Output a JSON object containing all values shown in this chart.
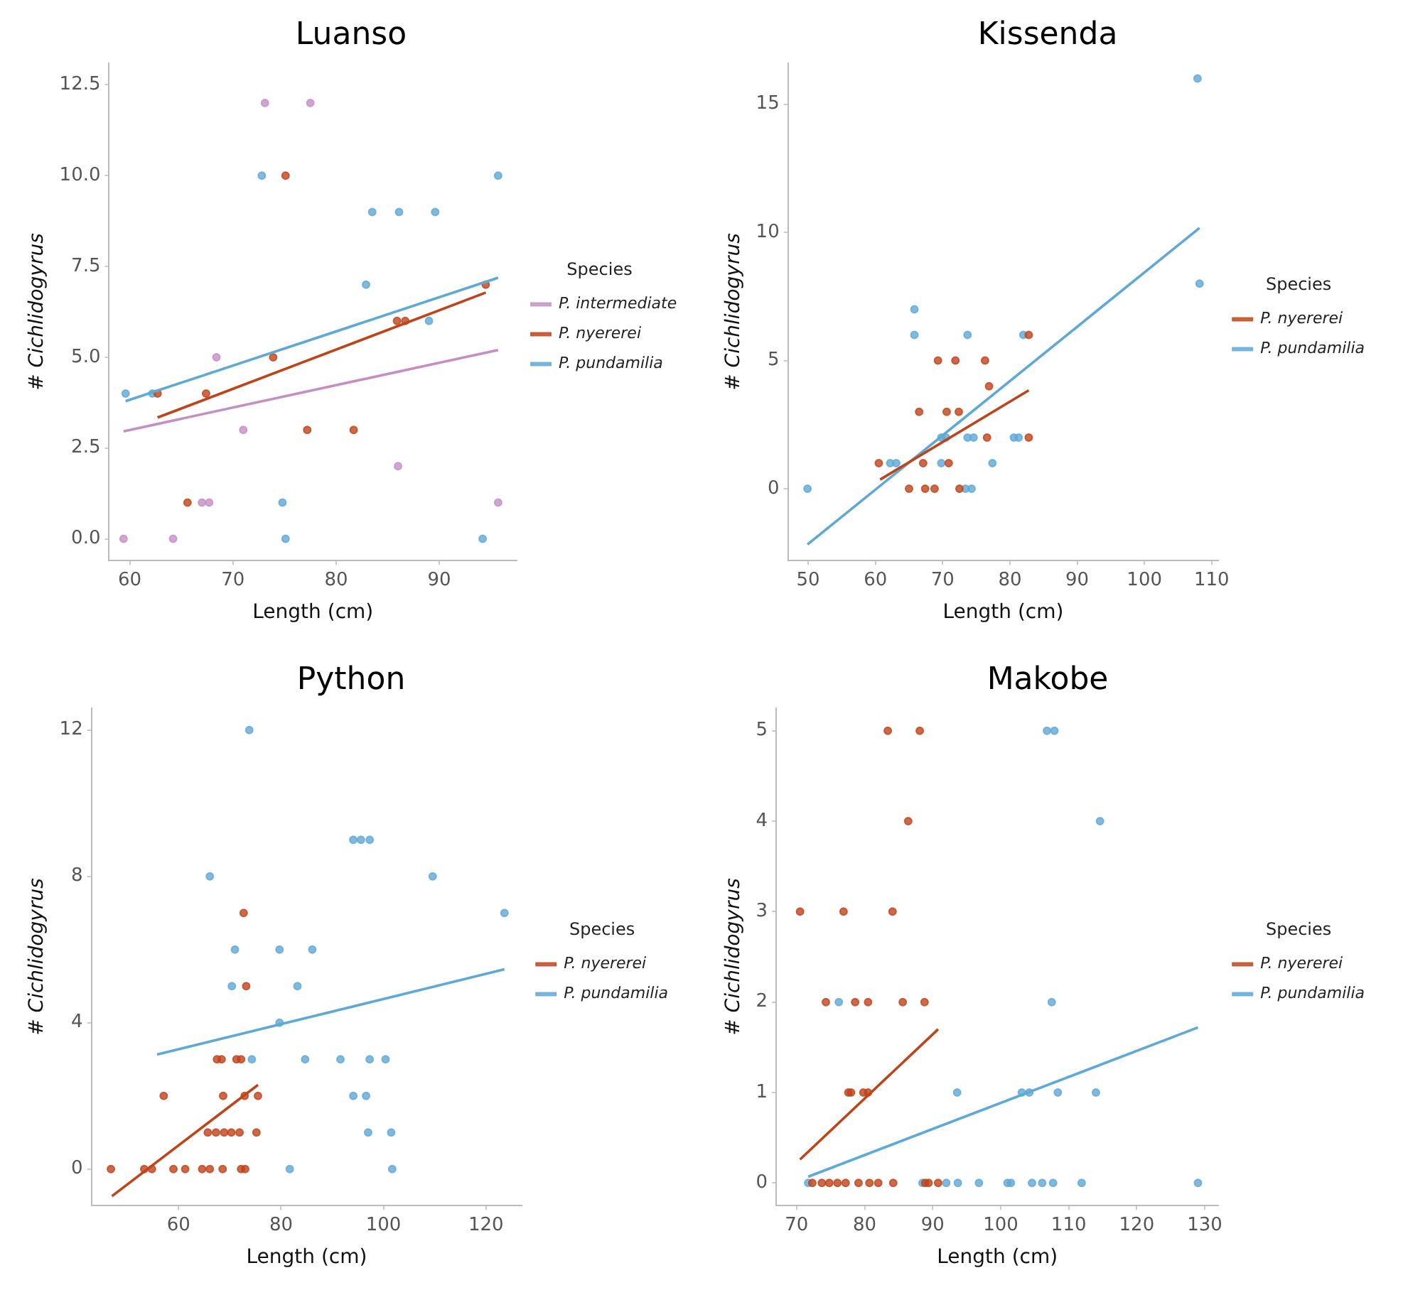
{
  "chart_data": [
    {
      "type": "scatter",
      "title": "Luanso",
      "xlabel": "Length (cm)",
      "ylabel": "# Cichlidogyrus",
      "legend_title": "Species",
      "legend": "right",
      "marker": "circle",
      "grid": false,
      "xlim": [
        58,
        97.5
      ],
      "xticks": [
        60,
        70,
        80,
        90
      ],
      "ylim": [
        -0.6,
        13.1
      ],
      "yticks": [
        {
          "value": 0,
          "label": "0.0"
        },
        {
          "value": 2.5,
          "label": "2.5"
        },
        {
          "value": 5,
          "label": "5.0"
        },
        {
          "value": 7.5,
          "label": "7.5"
        },
        {
          "value": 10,
          "label": "10.0"
        },
        {
          "value": 12.5,
          "label": "12.5"
        }
      ],
      "series": [
        {
          "name": "P. intermediate",
          "color": "#c58fc5",
          "x": [
            73.1,
            77.5,
            68.4,
            71,
            67,
            67.7,
            59.4,
            64.2,
            86,
            95.7
          ],
          "values": [
            12,
            12,
            5,
            3,
            1,
            1,
            0,
            0,
            2,
            1
          ]
        },
        {
          "name": "P. nyererei",
          "color": "#c0441a",
          "x": [
            75.1,
            62.7,
            67.4,
            73.9,
            77.2,
            81.7,
            65.6,
            85.9,
            86.7,
            94.5
          ],
          "values": [
            10,
            4,
            4,
            5,
            3,
            3,
            1,
            6,
            6,
            7
          ]
        },
        {
          "name": "P. pundamilia",
          "color": "#5fa9d6",
          "x": [
            72.8,
            95.7,
            83.5,
            86.1,
            89.6,
            82.9,
            89,
            59.6,
            62.2,
            74.8,
            75.1,
            94.2
          ],
          "values": [
            10,
            10,
            9,
            9,
            9,
            7,
            6,
            4,
            4,
            1,
            0,
            0
          ]
        },
        {
          "type": "line",
          "marker": "none",
          "color": "#c58fc5",
          "x": [
            59.4,
            95.7
          ],
          "values": [
            2.96,
            5.2
          ]
        },
        {
          "type": "line",
          "marker": "none",
          "color": "#c0441a",
          "x": [
            62.7,
            94.5
          ],
          "values": [
            3.34,
            6.78
          ]
        },
        {
          "type": "line",
          "marker": "none",
          "color": "#5fa9d6",
          "x": [
            59.6,
            95.7
          ],
          "values": [
            3.79,
            7.19
          ]
        }
      ]
    },
    {
      "type": "scatter",
      "title": "Kissenda",
      "xlabel": "Length (cm)",
      "ylabel": "# Cichlidogyrus",
      "legend_title": "Species",
      "legend": "right",
      "marker": "circle",
      "grid": false,
      "xlim": [
        47,
        111
      ],
      "xticks": [
        50,
        60,
        70,
        80,
        90,
        100,
        110
      ],
      "ylim": [
        -2.8,
        16.6
      ],
      "yticks": [
        0,
        5,
        10,
        15
      ],
      "series": [
        {
          "name": "P. nyererei",
          "color": "#c0441a",
          "x": [
            60.5,
            67.1,
            70.9,
            66.5,
            70.6,
            72.4,
            69.3,
            71.9,
            76.3,
            76.9,
            82.8,
            76.6,
            82.8,
            65,
            67.4,
            68.8,
            72.5
          ],
          "values": [
            1,
            1,
            1,
            3,
            3,
            3,
            5,
            5,
            5,
            4,
            6,
            2,
            2,
            0,
            0,
            0,
            0
          ]
        },
        {
          "name": "P. pundamilia",
          "color": "#5fa9d6",
          "x": [
            49.9,
            107.9,
            108.2,
            65.8,
            65.8,
            73.7,
            82,
            62.2,
            63.1,
            69.8,
            77.4,
            69.8,
            70.5,
            73.7,
            74.6,
            80.6,
            81.3,
            73.4,
            74.3
          ],
          "values": [
            0,
            16,
            8,
            7,
            6,
            6,
            6,
            1,
            1,
            1,
            1,
            2,
            2,
            2,
            2,
            2,
            2,
            0,
            0
          ]
        },
        {
          "type": "line",
          "marker": "none",
          "color": "#c0441a",
          "x": [
            60.7,
            82.8
          ],
          "values": [
            0.36,
            3.84
          ]
        },
        {
          "type": "line",
          "marker": "none",
          "color": "#5fa9d6",
          "x": [
            49.9,
            108.2
          ],
          "values": [
            -2.17,
            10.17
          ]
        }
      ]
    },
    {
      "type": "scatter",
      "title": "Python",
      "xlabel": "Length (cm)",
      "ylabel": "# Cichlidogyrus",
      "legend_title": "Species",
      "legend": "right",
      "marker": "circle",
      "grid": false,
      "xlim": [
        43,
        127
      ],
      "xticks": [
        60,
        80,
        100,
        120
      ],
      "ylim": [
        -1,
        12.6
      ],
      "yticks": [
        0,
        4,
        8,
        12
      ],
      "series": [
        {
          "name": "P. nyererei",
          "color": "#c0441a",
          "x": [
            72.7,
            73.2,
            67.5,
            68.4,
            71.3,
            72.2,
            57.1,
            68.7,
            72.9,
            75.5,
            65.7,
            67.3,
            68.9,
            70.3,
            71.9,
            75.2,
            46.8,
            53.3,
            54.8,
            59,
            61.3,
            64.6,
            66.1,
            68.6,
            72.2,
            73
          ],
          "values": [
            7,
            5,
            3,
            3,
            3,
            3,
            2,
            2,
            2,
            2,
            1,
            1,
            1,
            1,
            1,
            1,
            0,
            0,
            0,
            0,
            0,
            0,
            0,
            0,
            0,
            0
          ]
        },
        {
          "name": "P. pundamilia",
          "color": "#5fa9d6",
          "x": [
            73.8,
            94.1,
            95.6,
            97.3,
            66.1,
            109.6,
            123.6,
            71,
            79.7,
            86.1,
            70.4,
            83.2,
            79.7,
            74.3,
            84.7,
            91.6,
            97.3,
            100.4,
            94.1,
            96.6,
            97,
            101.5,
            81.7,
            101.7
          ],
          "values": [
            12,
            9,
            9,
            9,
            8,
            8,
            7,
            6,
            6,
            6,
            5,
            5,
            4,
            3,
            3,
            3,
            3,
            3,
            2,
            2,
            1,
            1,
            0,
            0
          ]
        },
        {
          "type": "line",
          "marker": "none",
          "color": "#c0441a",
          "x": [
            47,
            75.5
          ],
          "values": [
            -0.74,
            2.3
          ]
        },
        {
          "type": "line",
          "marker": "none",
          "color": "#5fa9d6",
          "x": [
            55.8,
            123.6
          ],
          "values": [
            3.13,
            5.46
          ]
        }
      ]
    },
    {
      "type": "scatter",
      "title": "Makobe",
      "xlabel": "Length (cm)",
      "ylabel": "# Cichlidogyrus",
      "legend_title": "Species",
      "legend": "right",
      "marker": "circle",
      "grid": false,
      "xlim": [
        67,
        132
      ],
      "xticks": [
        70,
        80,
        90,
        100,
        110,
        120,
        130
      ],
      "ylim": [
        -0.25,
        5.25
      ],
      "yticks": [
        0,
        1,
        2,
        3,
        4,
        5
      ],
      "series": [
        {
          "name": "P. nyererei",
          "color": "#c0441a",
          "x": [
            83.4,
            88.1,
            86.4,
            70.5,
            76.9,
            84.1,
            74.3,
            78.6,
            80.5,
            85.6,
            88.8,
            77.6,
            78,
            79.8,
            80.5,
            72.3,
            73.7,
            74.8,
            76,
            77.2,
            79.1,
            80.7,
            82,
            84.2,
            88.9,
            89.4,
            90.8
          ],
          "values": [
            5,
            5,
            4,
            3,
            3,
            3,
            2,
            2,
            2,
            2,
            2,
            1,
            1,
            1,
            1,
            0,
            0,
            0,
            0,
            0,
            0,
            0,
            0,
            0,
            0,
            0,
            0
          ]
        },
        {
          "name": "P. pundamilia",
          "color": "#5fa9d6",
          "x": [
            106.8,
            107.9,
            114.6,
            107.5,
            76.2,
            93.6,
            103.1,
            104.2,
            108.4,
            114,
            71.7,
            88.5,
            92,
            93.7,
            96.8,
            101,
            101.5,
            104.6,
            106.1,
            107.7,
            111.9,
            129
          ],
          "values": [
            5,
            5,
            4,
            2,
            2,
            1,
            1,
            1,
            1,
            1,
            0,
            0,
            0,
            0,
            0,
            0,
            0,
            0,
            0,
            0,
            0,
            0
          ]
        },
        {
          "type": "line",
          "marker": "none",
          "color": "#c0441a",
          "x": [
            70.5,
            90.8
          ],
          "values": [
            0.26,
            1.7
          ]
        },
        {
          "type": "line",
          "marker": "none",
          "color": "#5fa9d6",
          "x": [
            71.7,
            129
          ],
          "values": [
            0.07,
            1.72
          ]
        }
      ]
    }
  ]
}
